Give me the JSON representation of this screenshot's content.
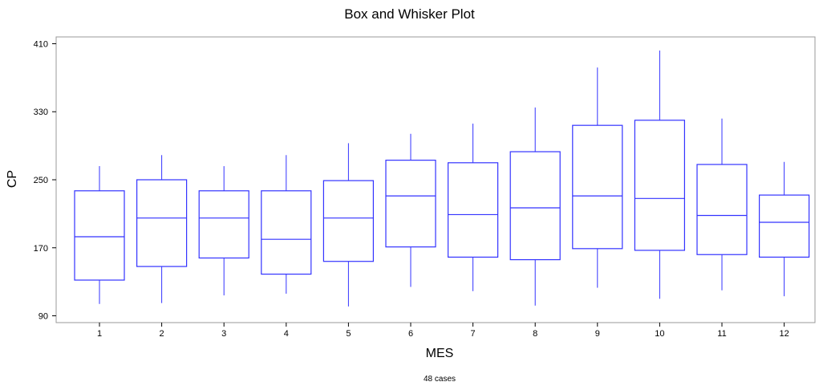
{
  "chart_data": {
    "type": "box",
    "title": "Box and Whisker Plot",
    "xlabel": "MES",
    "ylabel": "CP",
    "footnote": "48 cases",
    "ylim": [
      82,
      418
    ],
    "yticks": [
      90,
      170,
      250,
      330,
      410
    ],
    "grid": false,
    "box_color": "#3333ff",
    "categories": [
      "1",
      "2",
      "3",
      "4",
      "5",
      "6",
      "7",
      "8",
      "9",
      "10",
      "11",
      "12"
    ],
    "boxes": [
      {
        "category": "1",
        "min": 104,
        "q1": 132,
        "median": 183,
        "q3": 237,
        "max": 266
      },
      {
        "category": "2",
        "min": 105,
        "q1": 148,
        "median": 205,
        "q3": 250,
        "max": 279
      },
      {
        "category": "3",
        "min": 114,
        "q1": 158,
        "median": 205,
        "q3": 237,
        "max": 266
      },
      {
        "category": "4",
        "min": 116,
        "q1": 139,
        "median": 180,
        "q3": 237,
        "max": 279
      },
      {
        "category": "5",
        "min": 101,
        "q1": 154,
        "median": 205,
        "q3": 249,
        "max": 293
      },
      {
        "category": "6",
        "min": 124,
        "q1": 171,
        "median": 231,
        "q3": 273,
        "max": 304
      },
      {
        "category": "7",
        "min": 119,
        "q1": 159,
        "median": 209,
        "q3": 270,
        "max": 316
      },
      {
        "category": "8",
        "min": 102,
        "q1": 156,
        "median": 217,
        "q3": 283,
        "max": 335
      },
      {
        "category": "9",
        "min": 123,
        "q1": 169,
        "median": 231,
        "q3": 314,
        "max": 382
      },
      {
        "category": "10",
        "min": 110,
        "q1": 167,
        "median": 228,
        "q3": 320,
        "max": 402
      },
      {
        "category": "11",
        "min": 120,
        "q1": 162,
        "median": 208,
        "q3": 268,
        "max": 322
      },
      {
        "category": "12",
        "min": 113,
        "q1": 159,
        "median": 200,
        "q3": 232,
        "max": 271
      }
    ]
  }
}
